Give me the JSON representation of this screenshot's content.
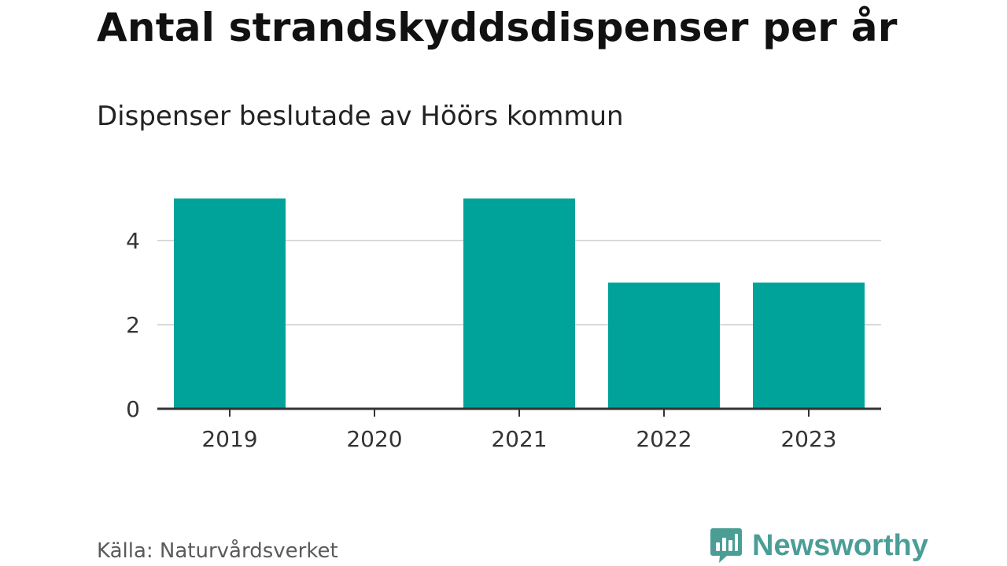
{
  "header": {
    "title": "Antal strandskyddsdispenser per år",
    "subtitle": "Dispenser beslutade av Höörs kommun"
  },
  "footer": {
    "source": "Källa: Naturvårdsverket",
    "brand": "Newsworthy",
    "brand_icon": "bar-chart-speech-bubble-icon"
  },
  "colors": {
    "bar": "#00a39a",
    "grid": "#d9d9d9",
    "axis": "#333333",
    "brand": "#4a9e96"
  },
  "chart_data": {
    "type": "bar",
    "title": "Antal strandskyddsdispenser per år",
    "subtitle": "Dispenser beslutade av Höörs kommun",
    "categories": [
      "2019",
      "2020",
      "2021",
      "2022",
      "2023"
    ],
    "values": [
      5,
      0,
      5,
      3,
      3
    ],
    "yticks": [
      0,
      2,
      4
    ],
    "ylim": [
      0,
      5
    ],
    "grid": true,
    "legend": "none"
  }
}
